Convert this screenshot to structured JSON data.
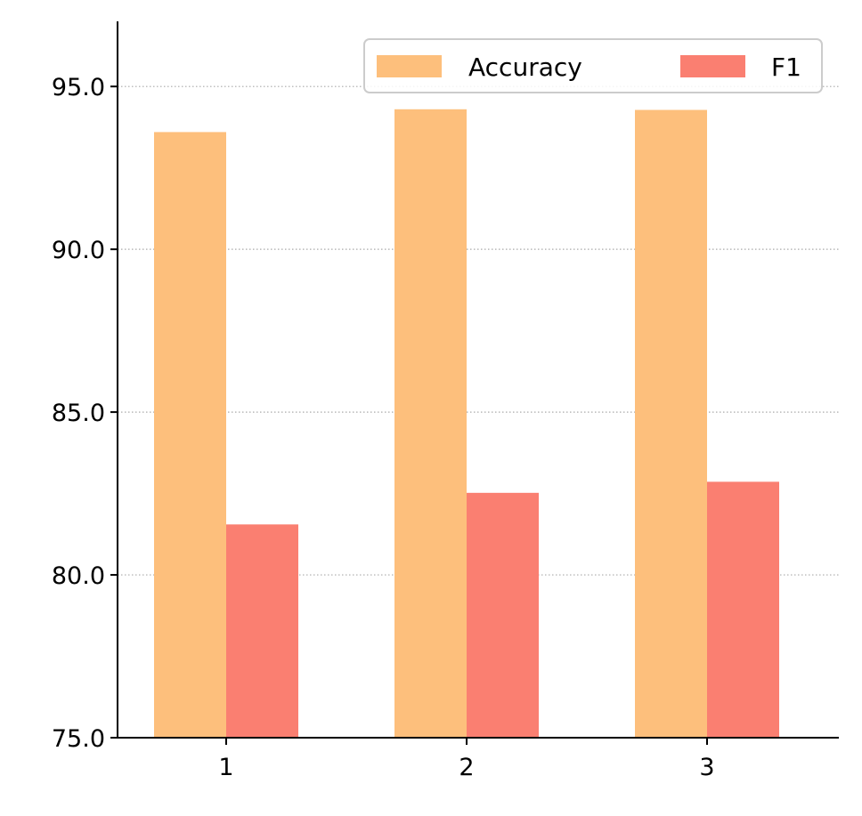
{
  "chart_data": {
    "type": "bar",
    "categories": [
      "1",
      "2",
      "3"
    ],
    "series": [
      {
        "name": "Accuracy",
        "values": [
          93.6,
          94.3,
          94.28
        ],
        "color": "#fdbf7c"
      },
      {
        "name": "F1",
        "values": [
          81.55,
          82.52,
          82.86
        ],
        "color": "#fa7f71"
      }
    ],
    "title": "",
    "xlabel": "",
    "ylabel": "",
    "ylim": [
      75.0,
      97.0
    ],
    "yticks": [
      75.0,
      80.0,
      85.0,
      90.0,
      95.0
    ],
    "ytick_labels": [
      "75.0",
      "80.0",
      "85.0",
      "90.0",
      "95.0"
    ],
    "grid": "y-dotted",
    "legend": {
      "placement": "top-right",
      "columns": 2
    }
  }
}
